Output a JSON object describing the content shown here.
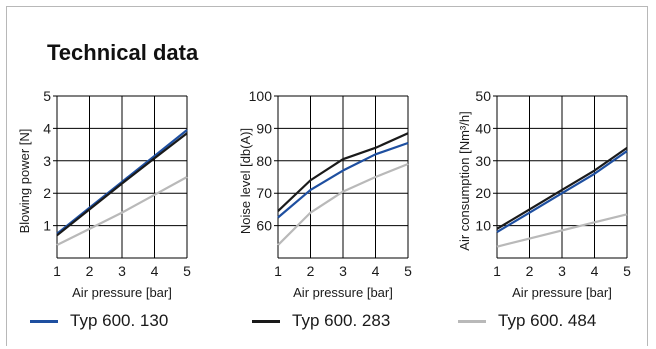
{
  "heading": "Technical data",
  "colors": {
    "series": [
      "#1e4fa0",
      "#1a1a1a",
      "#b9b9b9"
    ],
    "grid": "#000000",
    "frame": "#b8b8b8"
  },
  "legend": [
    {
      "name": "Typ 600. 130",
      "color": "#1e4fa0"
    },
    {
      "name": "Typ 600. 283",
      "color": "#1a1a1a"
    },
    {
      "name": "Typ 600. 484",
      "color": "#b9b9b9"
    }
  ],
  "chart_data": [
    {
      "type": "line",
      "xlabel": "Air pressure [bar]",
      "ylabel": "Blowing power [N]",
      "x": [
        1,
        2,
        3,
        4,
        5
      ],
      "xlim": [
        1,
        5
      ],
      "ylim": [
        0,
        5
      ],
      "yticks": [
        1,
        2,
        3,
        4,
        5
      ],
      "grid": true,
      "series": [
        {
          "name": "Typ 600. 130",
          "values": [
            0.75,
            1.55,
            2.35,
            3.15,
            3.95
          ]
        },
        {
          "name": "Typ 600. 283",
          "values": [
            0.7,
            1.5,
            2.3,
            3.08,
            3.85
          ]
        },
        {
          "name": "Typ 600. 484",
          "values": [
            0.4,
            0.9,
            1.4,
            1.95,
            2.5
          ]
        }
      ]
    },
    {
      "type": "line",
      "xlabel": "Air pressure [bar]",
      "ylabel": "Noise level [db(A)]",
      "x": [
        1,
        2,
        3,
        4,
        5
      ],
      "xlim": [
        1,
        5
      ],
      "ylim": [
        50,
        100
      ],
      "yticks": [
        60,
        70,
        80,
        90,
        100
      ],
      "grid": true,
      "series": [
        {
          "name": "Typ 600. 130",
          "values": [
            62.5,
            71,
            77,
            82,
            85.5
          ]
        },
        {
          "name": "Typ 600. 283",
          "values": [
            64.5,
            74,
            80.5,
            84,
            88.5
          ]
        },
        {
          "name": "Typ 600. 484",
          "values": [
            54,
            64,
            70.5,
            75,
            79
          ]
        }
      ]
    },
    {
      "type": "line",
      "xlabel": "Air pressure [bar]",
      "ylabel": "Air consumption [Nm³/h]",
      "x": [
        1,
        2,
        3,
        4,
        5
      ],
      "xlim": [
        1,
        5
      ],
      "ylim": [
        0,
        50
      ],
      "yticks": [
        10,
        20,
        30,
        40,
        50
      ],
      "grid": true,
      "series": [
        {
          "name": "Typ 600. 130",
          "values": [
            8,
            14,
            20,
            26,
            33
          ]
        },
        {
          "name": "Typ 600. 283",
          "values": [
            9,
            15,
            21,
            27,
            34
          ]
        },
        {
          "name": "Typ 600. 484",
          "values": [
            3.5,
            6,
            8.5,
            11,
            13.5
          ]
        }
      ]
    }
  ]
}
